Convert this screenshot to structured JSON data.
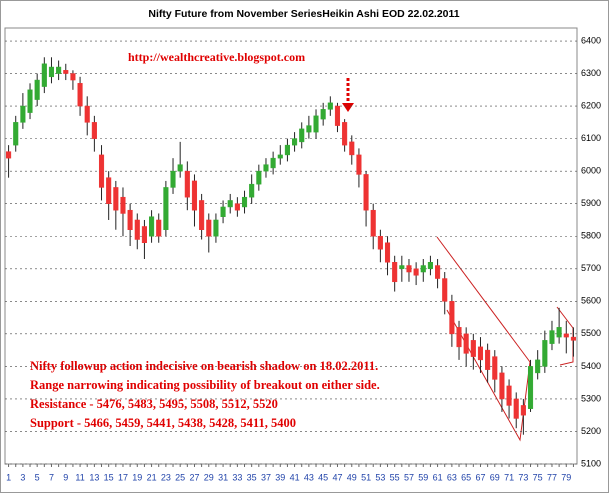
{
  "chart_data": {
    "type": "candlestick",
    "title": "Nifty Future from November SeriesHeikin Ashi EOD 22.02.2011",
    "url_text": "http://wealthcreative.blogspot.com",
    "annotations": [
      "Nifty followup action indecisive on bearish shadow on 18.02.2011.",
      "Range narrowing indicating possibility of breakout on either side.",
      "Resistance - 5476, 5483, 5495, 5508, 5512, 5520",
      "Support - 5466, 5459, 5441, 5438, 5428, 5411, 5400"
    ],
    "categories": [
      "1",
      null,
      "3",
      null,
      "5",
      null,
      "7",
      null,
      "9",
      null,
      "11",
      null,
      "13",
      null,
      "15",
      null,
      "17",
      null,
      "19",
      null,
      "21",
      null,
      "23",
      null,
      "25",
      null,
      "27",
      null,
      "29",
      null,
      "31",
      null,
      "33",
      null,
      "35",
      null,
      "37",
      null,
      "39",
      null,
      "41",
      null,
      "43",
      null,
      "45",
      null,
      "47",
      null,
      "49",
      null,
      "51",
      null,
      "53",
      null,
      "55",
      null,
      "57",
      null,
      "59",
      null,
      "61",
      null,
      "63",
      null,
      "65",
      null,
      "67",
      null,
      "69",
      null,
      "71",
      null,
      "73",
      null,
      "75",
      null,
      "77",
      null,
      "79",
      null
    ],
    "open": [
      6060,
      6080,
      6150,
      6180,
      6220,
      6260,
      6290,
      6300,
      6310,
      6300,
      6270,
      6200,
      6150,
      6050,
      5980,
      5950,
      5920,
      5880,
      5850,
      5830,
      5800,
      5850,
      5820,
      5950,
      6000,
      6000,
      5970,
      5910,
      5850,
      5800,
      5860,
      5890,
      5900,
      5890,
      5920,
      5960,
      6000,
      6010,
      6040,
      6050,
      6080,
      6090,
      6120,
      6120,
      6160,
      6190,
      6200,
      6150,
      6090,
      6050,
      5990,
      5880,
      5800,
      5780,
      5720,
      5700,
      5710,
      5700,
      5690,
      5700,
      5710,
      5670,
      5600,
      5520,
      5500,
      5480,
      5460,
      5450,
      5430,
      5380,
      5340,
      5300,
      5280,
      5270,
      5380,
      5400,
      5470,
      5490,
      5500,
      5490
    ],
    "high": [
      6080,
      6170,
      6240,
      6270,
      6300,
      6350,
      6350,
      6340,
      6330,
      6310,
      6290,
      6230,
      6170,
      6080,
      6000,
      5970,
      5950,
      5900,
      5870,
      5850,
      5880,
      5870,
      5970,
      6040,
      6090,
      6030,
      5990,
      5930,
      5870,
      5870,
      5910,
      5930,
      5920,
      5940,
      5990,
      6020,
      6040,
      6060,
      6080,
      6100,
      6120,
      6150,
      6170,
      6190,
      6210,
      6230,
      6210,
      6160,
      6110,
      6070,
      6000,
      5900,
      5820,
      5800,
      5740,
      5740,
      5730,
      5720,
      5730,
      5740,
      5730,
      5690,
      5620,
      5540,
      5520,
      5500,
      5490,
      5470,
      5450,
      5400,
      5360,
      5320,
      5300,
      5420,
      5450,
      5510,
      5540,
      5580,
      5540,
      5520
    ],
    "low": [
      5980,
      6060,
      6130,
      6160,
      6200,
      6240,
      6270,
      6280,
      6280,
      6250,
      6170,
      6110,
      6060,
      5910,
      5850,
      5820,
      5800,
      5770,
      5760,
      5730,
      5780,
      5780,
      5800,
      5930,
      5980,
      5880,
      5830,
      5790,
      5750,
      5780,
      5840,
      5870,
      5860,
      5870,
      5900,
      5940,
      5980,
      5990,
      6020,
      6030,
      6060,
      6070,
      6100,
      6100,
      6140,
      6170,
      6120,
      6060,
      6020,
      5950,
      5830,
      5760,
      5720,
      5680,
      5630,
      5660,
      5660,
      5650,
      5660,
      5680,
      5640,
      5560,
      5460,
      5420,
      5400,
      5390,
      5380,
      5350,
      5320,
      5260,
      5240,
      5210,
      5190,
      5260,
      5360,
      5380,
      5450,
      5470,
      5440,
      5430
    ],
    "close": [
      6040,
      6150,
      6200,
      6250,
      6280,
      6330,
      6320,
      6320,
      6300,
      6280,
      6200,
      6150,
      6100,
      5950,
      5900,
      5880,
      5870,
      5820,
      5790,
      5780,
      5860,
      5800,
      5950,
      6000,
      6020,
      5920,
      5880,
      5820,
      5800,
      5850,
      5890,
      5910,
      5880,
      5920,
      5960,
      6000,
      6020,
      6040,
      6050,
      6080,
      6100,
      6130,
      6140,
      6170,
      6190,
      6210,
      6140,
      6080,
      6050,
      5990,
      5880,
      5800,
      5760,
      5720,
      5660,
      5710,
      5690,
      5680,
      5710,
      5720,
      5670,
      5600,
      5500,
      5460,
      5440,
      5430,
      5420,
      5390,
      5360,
      5300,
      5280,
      5240,
      5250,
      5400,
      5420,
      5480,
      5510,
      5520,
      5490,
      5480
    ],
    "up_color": "#33aa33",
    "down_color": "#ee3333",
    "ylim": [
      5100,
      6440
    ],
    "yticks": [
      5100,
      5200,
      5300,
      5400,
      5500,
      5600,
      5700,
      5800,
      5900,
      6000,
      6100,
      6200,
      6300,
      6400
    ],
    "grid": true
  }
}
